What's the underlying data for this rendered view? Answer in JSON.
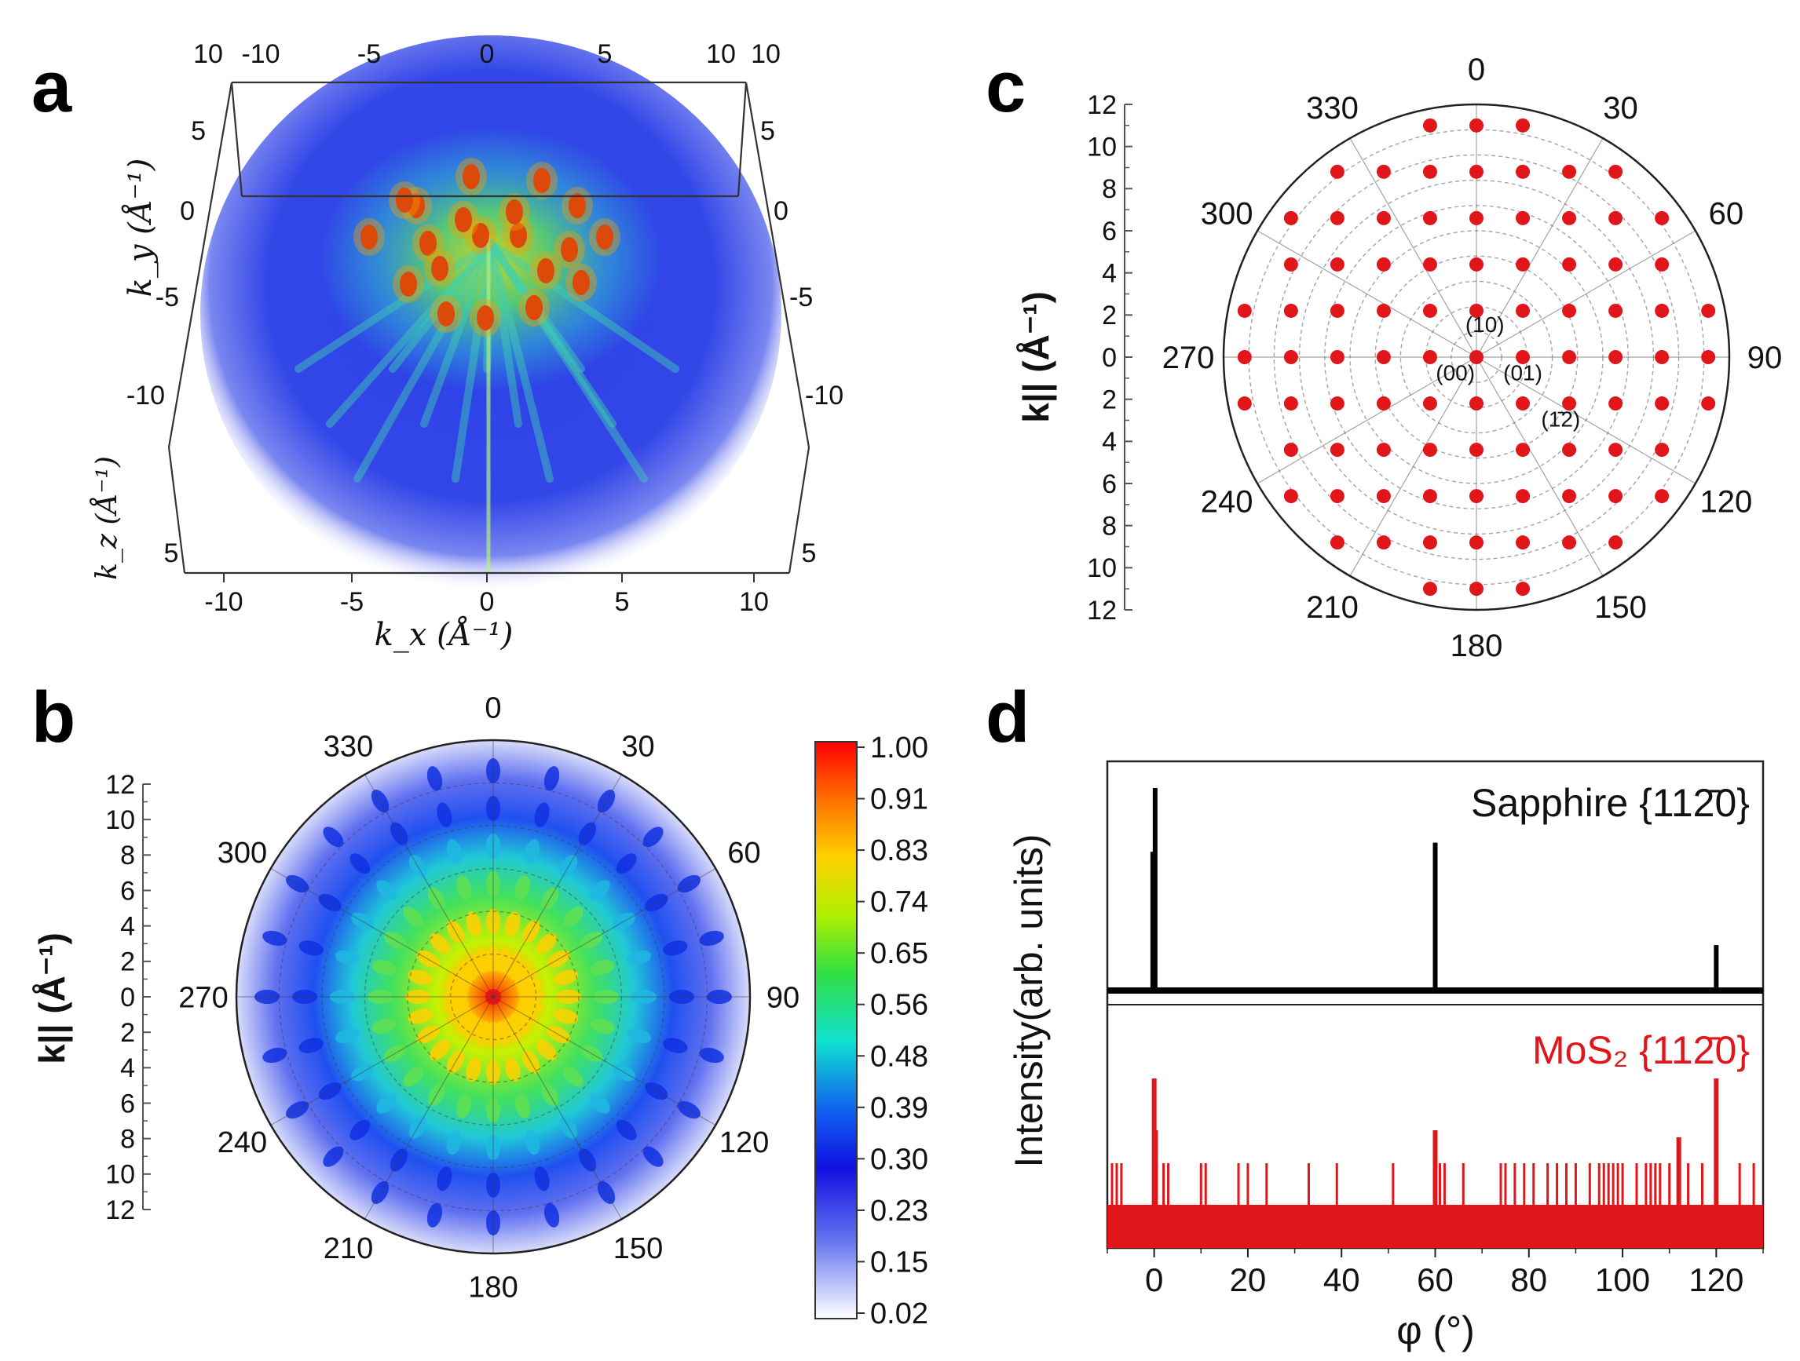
{
  "panels": {
    "a": {
      "letter": "a"
    },
    "b": {
      "letter": "b"
    },
    "c": {
      "letter": "c"
    },
    "d": {
      "letter": "d"
    }
  },
  "colors": {
    "accent_red": "#e0161b",
    "dark_red": "#c00000",
    "black": "#000000",
    "blue": "#1f3ee0"
  },
  "chart_data": [
    {
      "id": "a",
      "type": "heatmap",
      "description_3d": true,
      "xlabel": "k_x (Å⁻¹)",
      "ylabel": "k_y (Å⁻¹)",
      "zlabel": "k_z (Å⁻¹)",
      "x_ticks": [
        "-10",
        "-5",
        "0",
        "5",
        "10"
      ],
      "top_ticks": [
        "10",
        "-10",
        "-5",
        "0",
        "5",
        "10",
        "10"
      ],
      "left_ticks": [
        "5",
        "0",
        "-5",
        "-10"
      ],
      "right_ticks": [
        "5",
        "0",
        "-5",
        "-10"
      ],
      "kz_ticks": [
        "5"
      ],
      "right_kz_tick": "5"
    },
    {
      "id": "b",
      "type": "heatmap",
      "projection": "polar",
      "ylabel": "k|| (Å⁻¹)",
      "k_ticks_upper": [
        "12",
        "10",
        "8",
        "6",
        "4",
        "2",
        "0"
      ],
      "k_ticks_lower": [
        "2",
        "4",
        "6",
        "8",
        "10",
        "12"
      ],
      "angle_labels": [
        "0",
        "30",
        "60",
        "90",
        "120",
        "150",
        "180",
        "210",
        "240",
        "270",
        "300",
        "330"
      ],
      "colorbar_ticks": [
        "1.00",
        "0.91",
        "0.83",
        "0.74",
        "0.65",
        "0.56",
        "0.48",
        "0.39",
        "0.30",
        "0.23",
        "0.15",
        "0.02"
      ],
      "colorbar_range": [
        0.02,
        1.0
      ]
    },
    {
      "id": "c",
      "type": "scatter",
      "projection": "polar",
      "ylabel": "k|| (Å⁻¹)",
      "k_ticks_upper": [
        "12",
        "10",
        "8",
        "6",
        "4",
        "2",
        "0"
      ],
      "k_ticks_lower": [
        "2",
        "4",
        "6",
        "8",
        "10",
        "12"
      ],
      "angle_labels": [
        "0",
        "30",
        "60",
        "90",
        "120",
        "150",
        "180",
        "210",
        "240",
        "270",
        "300",
        "330"
      ],
      "rmax": 12,
      "lattice_spacing": 2.2,
      "lattice_max_index": 5,
      "lattice_cutoff_radius": 11.3,
      "spot_labels": [
        {
          "text": "(10)",
          "kx": 0.4,
          "ky": 1.2
        },
        {
          "text": "(00)",
          "kx": -1.0,
          "ky": -1.1
        },
        {
          "text": "(01)",
          "kx": 2.2,
          "ky": -1.1
        },
        {
          "text": "(1̄2)",
          "kx": 4.0,
          "ky": -3.3
        }
      ],
      "color": "#e0161b"
    },
    {
      "id": "d",
      "type": "line",
      "xlabel": "φ (°)",
      "ylabel": "Intensity(arb. units)",
      "xlim": [
        -10,
        130
      ],
      "x_ticks": [
        "0",
        "20",
        "40",
        "60",
        "80",
        "100",
        "120"
      ],
      "series": [
        {
          "name": "Sapphire {112̄0}",
          "color": "#000000",
          "peaks": [
            {
              "x": -0.3,
              "h": 0.62
            },
            {
              "x": 0.2,
              "h": 0.9
            },
            {
              "x": 60,
              "h": 0.66
            },
            {
              "x": 120,
              "h": 0.21
            }
          ]
        },
        {
          "name": "MoS₂ {112̄0}",
          "color": "#e0161b",
          "peaks": [
            {
              "x": 0,
              "h": 0.72
            },
            {
              "x": 0.3,
              "h": 0.5
            },
            {
              "x": 60,
              "h": 0.5
            },
            {
              "x": 112,
              "h": 0.47
            },
            {
              "x": 120,
              "h": 0.72
            }
          ],
          "noise_x": [
            -9,
            -8,
            -7,
            2,
            3,
            10,
            11,
            18,
            20,
            24,
            33,
            39,
            51,
            61,
            62,
            66,
            74,
            75,
            77,
            79,
            81,
            84,
            86,
            88,
            90,
            93,
            95,
            96,
            97,
            98,
            99,
            100,
            103,
            105,
            106,
            107,
            108,
            110,
            114,
            117,
            125,
            128
          ]
        }
      ]
    }
  ]
}
